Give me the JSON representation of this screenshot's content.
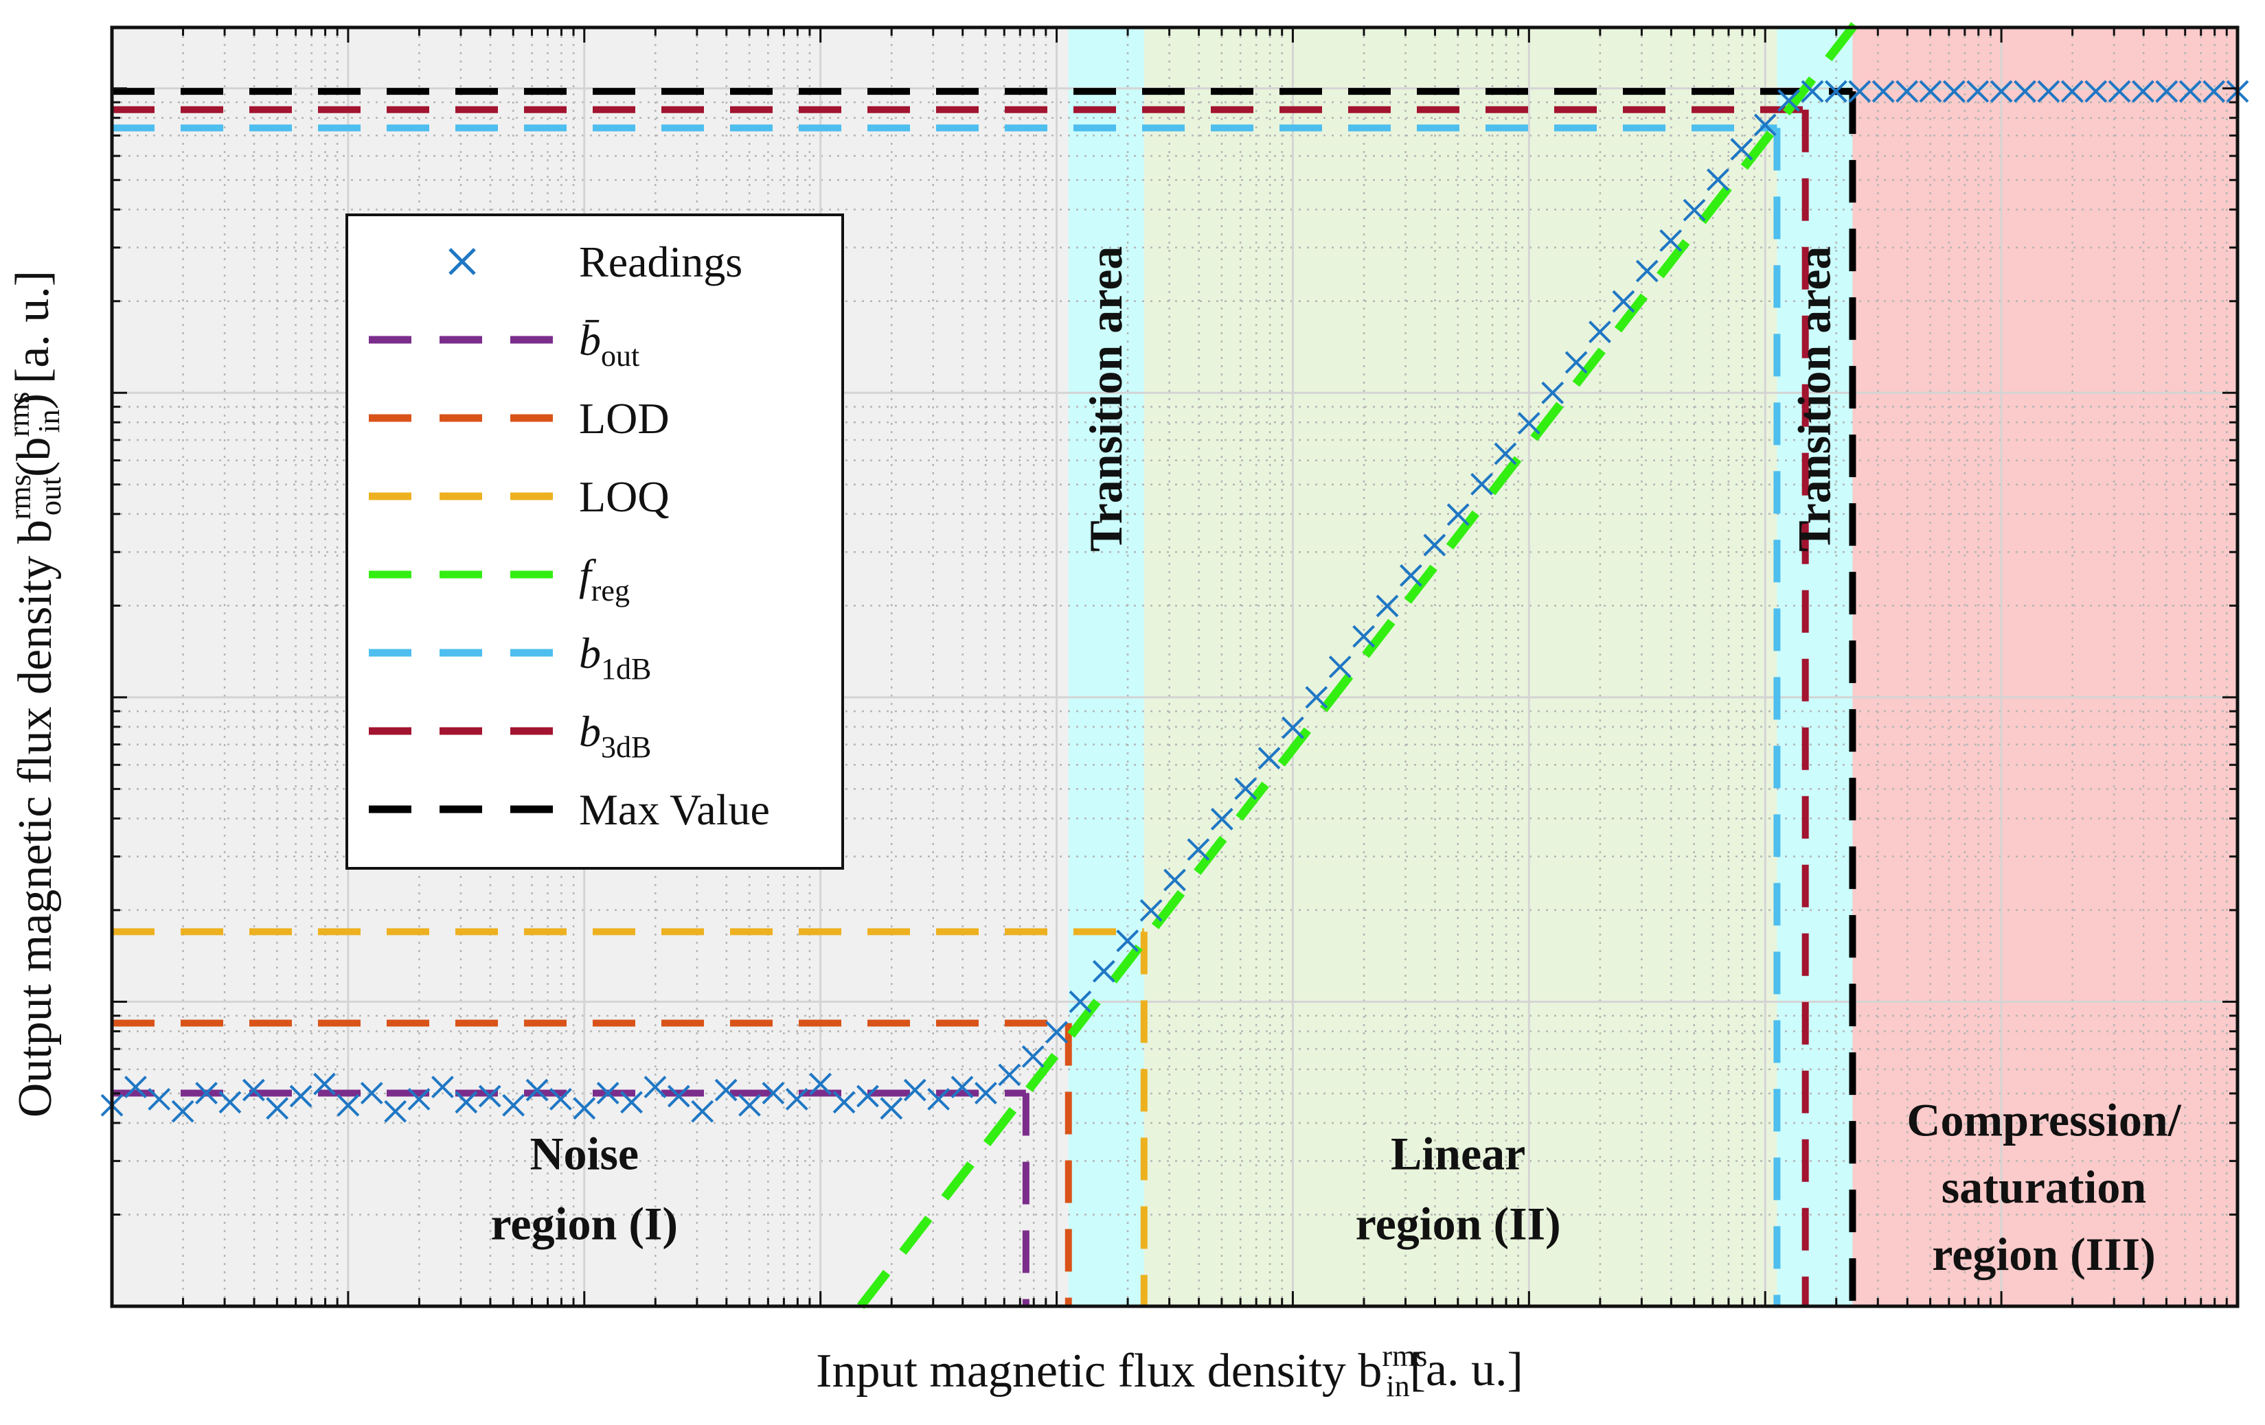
{
  "chart_data": {
    "type": "line",
    "x_scale": "log",
    "y_scale": "log",
    "xlim_log10": [
      0,
      9
    ],
    "ylim_log10": [
      0,
      4.2
    ],
    "grid": true,
    "minor_grid": true,
    "xticks_log10": [
      1,
      2,
      3,
      4,
      5,
      6,
      7,
      8
    ],
    "yticks_log10": [
      1,
      2,
      3,
      4
    ],
    "tick_labels_shown": false,
    "xlabel": {
      "main": "Input magnetic flux density b",
      "sup": "rms",
      "sub": "in",
      "unit": "[a. u.]"
    },
    "ylabel": {
      "main": "Output magnetic flux density b",
      "sup": "rms",
      "sub": "out",
      "paren_open": "(b",
      "arg_sup": "rms",
      "arg_sub": "in",
      "paren_close": ")",
      "unit": "[a. u.]"
    },
    "colors": {
      "readings": "#1f77c4",
      "mean_out": "#7b2d8b",
      "lod": "#d95319",
      "loq": "#edb120",
      "freg": "#33ee11",
      "b1db": "#4dbeee",
      "b3db": "#a2142f",
      "max": "#000000",
      "noise_bg": "#f0f0f0",
      "transition_bg": "#ccfcfc",
      "linear_bg": "#e9f4dc",
      "compression_bg": "#fbcaca"
    },
    "regions": [
      {
        "name": "Noise region (I)",
        "x_log10": [
          0,
          4.05
        ],
        "color": "noise_bg"
      },
      {
        "name": "Transition area",
        "x_log10": [
          4.05,
          4.37
        ],
        "color": "transition_bg"
      },
      {
        "name": "Linear region (II)",
        "x_log10": [
          4.37,
          7.05
        ],
        "color": "linear_bg"
      },
      {
        "name": "Transition area",
        "x_log10": [
          7.05,
          7.37
        ],
        "color": "transition_bg"
      },
      {
        "name": "Compression/saturation region (III)",
        "x_log10": [
          7.37,
          9
        ],
        "color": "compression_bg"
      }
    ],
    "region_labels": [
      {
        "lines": [
          "Noise",
          "region (I)"
        ],
        "x_log10": 2.0,
        "y_log10": [
          0.45,
          0.22
        ]
      },
      {
        "lines": [
          "Linear",
          "region (II)"
        ],
        "x_log10": 5.7,
        "y_log10": [
          0.45,
          0.22
        ]
      },
      {
        "lines": [
          "Compression/",
          "saturation",
          "region (III)"
        ],
        "x_log10": 8.18,
        "y_log10": [
          0.56,
          0.34,
          0.12
        ]
      }
    ],
    "transition_labels": [
      {
        "text": "Transition area",
        "x_log10": 4.21,
        "y_log10": 2.98
      },
      {
        "text": "Transition area",
        "x_log10": 7.21,
        "y_log10": 2.98
      }
    ],
    "lines": {
      "mean_out": {
        "y_log10": 0.7,
        "x_end_log10": 3.87
      },
      "lod": {
        "y_log10": 0.93,
        "x_end_log10": 4.05
      },
      "loq": {
        "y_log10": 1.23,
        "x_end_log10": 4.37
      },
      "b1db": {
        "y_log10": 3.87,
        "x_end_log10": 7.05
      },
      "b3db": {
        "y_log10": 3.93,
        "x_end_log10": 7.17
      },
      "max": {
        "y_log10": 3.99,
        "x_end_log10": 7.37
      },
      "freg": {
        "slope": 1.0,
        "intercept": -3.17,
        "x_range_log10": [
          3.17,
          7.4
        ]
      }
    },
    "readings": {
      "x_log10": [
        0,
        0.1,
        0.2,
        0.3,
        0.4,
        0.5,
        0.6,
        0.7,
        0.8,
        0.9,
        1.0,
        1.1,
        1.2,
        1.3,
        1.4,
        1.5,
        1.6,
        1.7,
        1.8,
        1.9,
        2.0,
        2.1,
        2.2,
        2.3,
        2.4,
        2.5,
        2.6,
        2.7,
        2.8,
        2.9,
        3.0,
        3.1,
        3.2,
        3.3,
        3.4,
        3.5,
        3.6,
        3.7,
        3.8,
        3.9,
        4.0,
        4.1,
        4.2,
        4.3,
        4.4,
        4.5,
        4.6,
        4.7,
        4.8,
        4.9,
        5.0,
        5.1,
        5.2,
        5.3,
        5.4,
        5.5,
        5.6,
        5.7,
        5.8,
        5.9,
        6.0,
        6.1,
        6.2,
        6.3,
        6.4,
        6.5,
        6.6,
        6.7,
        6.8,
        6.9,
        7.0,
        7.1,
        7.2,
        7.3,
        7.4,
        7.5,
        7.6,
        7.7,
        7.8,
        7.9,
        8.0,
        8.1,
        8.2,
        8.3,
        8.4,
        8.5,
        8.6,
        8.7,
        8.8,
        8.9,
        9.0
      ],
      "y_log10": [
        0.66,
        0.72,
        0.68,
        0.64,
        0.7,
        0.67,
        0.71,
        0.65,
        0.69,
        0.73,
        0.66,
        0.7,
        0.64,
        0.68,
        0.72,
        0.67,
        0.69,
        0.66,
        0.71,
        0.68,
        0.65,
        0.7,
        0.67,
        0.72,
        0.69,
        0.64,
        0.71,
        0.66,
        0.7,
        0.68,
        0.73,
        0.67,
        0.69,
        0.65,
        0.71,
        0.68,
        0.72,
        0.7,
        0.76,
        0.82,
        0.9,
        1.0,
        1.1,
        1.2,
        1.3,
        1.4,
        1.5,
        1.6,
        1.7,
        1.8,
        1.9,
        2.0,
        2.1,
        2.2,
        2.3,
        2.4,
        2.5,
        2.6,
        2.7,
        2.8,
        2.9,
        3.0,
        3.1,
        3.2,
        3.3,
        3.4,
        3.5,
        3.6,
        3.7,
        3.8,
        3.88,
        3.96,
        3.99,
        3.99,
        3.99,
        3.99,
        3.99,
        3.99,
        3.99,
        3.99,
        3.99,
        3.99,
        3.99,
        3.99,
        3.99,
        3.99,
        3.99,
        3.99,
        3.99,
        3.99,
        3.99
      ]
    },
    "legend": {
      "placement": "upper-left",
      "entries": [
        {
          "key": "readings",
          "label": "Readings",
          "marker": "x"
        },
        {
          "key": "mean_out",
          "label": "b̄",
          "sub": "out",
          "marker": "dash"
        },
        {
          "key": "lod",
          "label": "LOD",
          "marker": "dash"
        },
        {
          "key": "loq",
          "label": "LOQ",
          "marker": "dash"
        },
        {
          "key": "freg",
          "label": "f",
          "sub": "reg",
          "marker": "dash"
        },
        {
          "key": "b1db",
          "label": "b",
          "sub": "1dB",
          "marker": "dash"
        },
        {
          "key": "b3db",
          "label": "b",
          "sub": "3dB",
          "marker": "dash"
        },
        {
          "key": "max",
          "label": "Max Value",
          "marker": "dash"
        }
      ]
    }
  }
}
